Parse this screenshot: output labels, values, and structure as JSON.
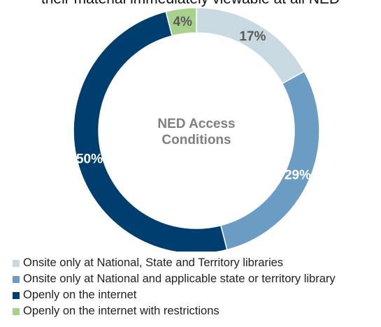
{
  "header": {
    "title": "their material immediately viewable at all NED"
  },
  "chart_data": {
    "type": "pie",
    "donut": true,
    "center_label": [
      "NED Access",
      "Conditions"
    ],
    "legend_position": "bottom",
    "slices": [
      {
        "label": "Onsite only at National, State and Territory libraries",
        "value": 17,
        "display": "17%",
        "color": "#c9d9e2",
        "label_color": "#595959"
      },
      {
        "label": "Onsite only at National and applicable state or territory library",
        "value": 29,
        "display": "29%",
        "color": "#6b9cc3",
        "label_color": "#ffffff"
      },
      {
        "label": "Openly on the internet",
        "value": 50,
        "display": "50%",
        "color": "#003e6f",
        "label_color": "#ffffff"
      },
      {
        "label": "Openly on the internet with restrictions",
        "value": 4,
        "display": "4%",
        "color": "#a9d18e",
        "label_color": "#595959"
      }
    ]
  }
}
